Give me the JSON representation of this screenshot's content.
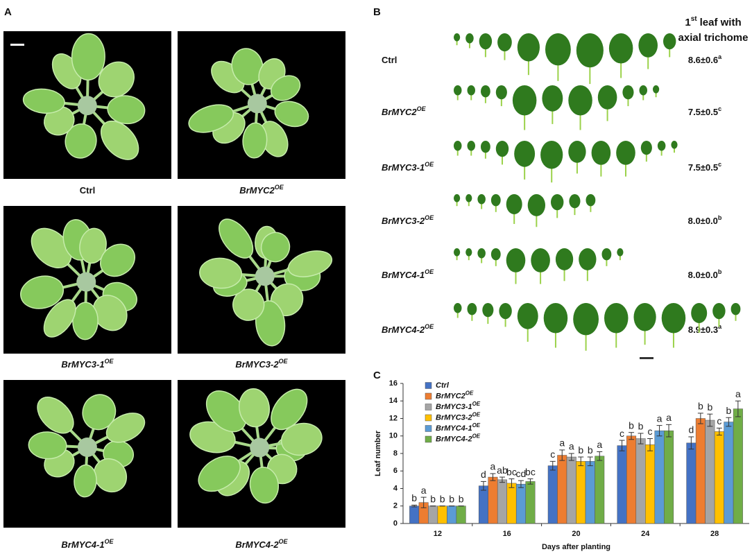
{
  "panel_a": {
    "label": "A",
    "captions": [
      {
        "text": "Ctrl"
      },
      {
        "text": "BrMYC2",
        "sup": "OE"
      },
      {
        "text": "BrMYC3-1",
        "sup": "OE"
      },
      {
        "text": "BrMYC3-2",
        "sup": "OE"
      },
      {
        "text": "BrMYC4-1",
        "sup": "OE"
      },
      {
        "text": "BrMYC4-2",
        "sup": "OE"
      }
    ]
  },
  "panel_b": {
    "label": "B",
    "header": {
      "line1_number": "1",
      "line1_sup": "st",
      "line1_rest": "leaf with",
      "line2": "axial trichome"
    },
    "rows": [
      {
        "genotype": {
          "text": "Ctrl"
        },
        "value": "8.6±0.6",
        "sup": "a"
      },
      {
        "genotype": {
          "text": "BrMYC2",
          "sup": "OE"
        },
        "value": "7.5±0.5",
        "sup": "c"
      },
      {
        "genotype": {
          "text": "BrMYC3-1",
          "sup": "OE"
        },
        "value": "7.5±0.5",
        "sup": "c"
      },
      {
        "genotype": {
          "text": "BrMYC3-2",
          "sup": "OE"
        },
        "value": "8.0±0.0",
        "sup": "b"
      },
      {
        "genotype": {
          "text": "BrMYC4-1",
          "sup": "OE"
        },
        "value": "8.0±0.0",
        "sup": "b"
      },
      {
        "genotype": {
          "text": "BrMYC4-2",
          "sup": "OE"
        },
        "value": "8.9±0.3",
        "sup": "a"
      }
    ]
  },
  "chart_data": {
    "type": "bar",
    "label": "C",
    "x_label": "Days after planting",
    "y_label": "Leaf number",
    "categories": [
      "12",
      "16",
      "20",
      "24",
      "28"
    ],
    "ylim": [
      0,
      16
    ],
    "yticks": [
      0,
      2,
      4,
      6,
      8,
      10,
      12,
      14,
      16
    ],
    "series": [
      {
        "name": "Ctrl",
        "color": "#4472c4",
        "values": [
          2.0,
          4.3,
          6.6,
          8.9,
          9.2
        ],
        "errors": [
          0.1,
          0.5,
          0.5,
          0.6,
          0.7
        ],
        "letters": [
          "b",
          "d",
          "c",
          "c",
          "d"
        ]
      },
      {
        "name": "BrMYC2",
        "name_sup": "OE",
        "color": "#ed7d31",
        "values": [
          2.4,
          5.3,
          7.8,
          10.0,
          12.0
        ],
        "errors": [
          0.6,
          0.4,
          0.6,
          0.4,
          0.6
        ],
        "letters": [
          "a",
          "a",
          "a",
          "b",
          "b"
        ]
      },
      {
        "name": "BrMYC3-1",
        "name_sup": "OE",
        "color": "#a5a5a5",
        "values": [
          2.0,
          5.0,
          7.6,
          9.7,
          11.8
        ],
        "errors": [
          0.0,
          0.3,
          0.4,
          0.6,
          0.7
        ],
        "letters": [
          "b",
          "ab",
          "a",
          "b",
          "b"
        ]
      },
      {
        "name": "BrMYC3-2",
        "name_sup": "OE",
        "color": "#ffc000",
        "values": [
          2.0,
          4.6,
          7.1,
          9.0,
          10.5
        ],
        "errors": [
          0.0,
          0.5,
          0.5,
          0.7,
          0.4
        ],
        "letters": [
          "b",
          "bc",
          "b",
          "c",
          "c"
        ]
      },
      {
        "name": "BrMYC4-1",
        "name_sup": "OE",
        "color": "#5b9bd5",
        "values": [
          2.0,
          4.5,
          7.1,
          10.6,
          11.6
        ],
        "errors": [
          0.0,
          0.4,
          0.5,
          0.6,
          0.5
        ],
        "letters": [
          "b",
          "cd",
          "b",
          "a",
          "b"
        ]
      },
      {
        "name": "BrMYC4-2",
        "name_sup": "OE",
        "color": "#70ad47",
        "values": [
          2.0,
          4.8,
          7.7,
          10.6,
          13.1
        ],
        "errors": [
          0.0,
          0.3,
          0.5,
          0.7,
          0.9
        ],
        "letters": [
          "b",
          "bc",
          "a",
          "a",
          "a"
        ]
      }
    ]
  }
}
